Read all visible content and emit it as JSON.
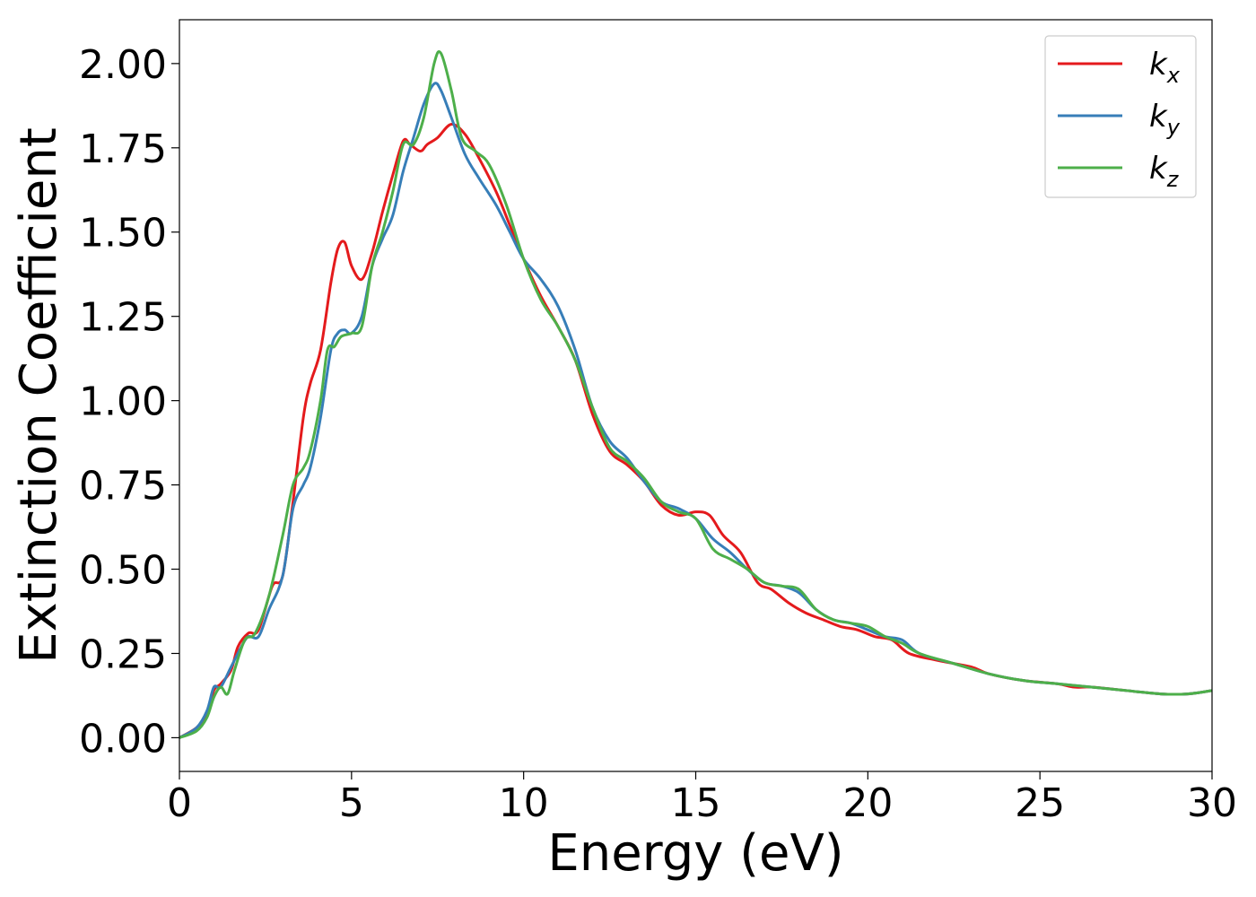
{
  "chart_data": {
    "type": "line",
    "xlabel": "Energy (eV)",
    "ylabel": "Extinction Coefficient",
    "xlim": [
      0,
      30
    ],
    "ylim": [
      -0.1,
      2.13
    ],
    "xticks": [
      0,
      5,
      10,
      15,
      20,
      25,
      30
    ],
    "xtick_labels": [
      "0",
      "5",
      "10",
      "15",
      "20",
      "25",
      "30"
    ],
    "yticks": [
      0,
      0.25,
      0.5,
      0.75,
      1.0,
      1.25,
      1.5,
      1.75,
      2.0
    ],
    "ytick_labels": [
      "0.00",
      "0.25",
      "0.50",
      "0.75",
      "1.00",
      "1.25",
      "1.50",
      "1.75",
      "2.00"
    ],
    "grid": false,
    "legend_position": "top-right",
    "series": [
      {
        "name": "kx",
        "label_base": "k",
        "label_sub": "x",
        "color": "#e41a1c",
        "x": [
          0,
          0.5,
          0.8,
          1.0,
          1.2,
          1.5,
          1.7,
          2.0,
          2.3,
          2.7,
          3.0,
          3.3,
          3.6,
          3.8,
          4.1,
          4.4,
          4.6,
          4.8,
          5.0,
          5.3,
          5.6,
          5.9,
          6.2,
          6.5,
          6.7,
          7.0,
          7.2,
          7.5,
          7.9,
          8.3,
          8.7,
          9.2,
          9.6,
          10.0,
          10.5,
          11.0,
          11.5,
          12.0,
          12.5,
          13.0,
          13.5,
          14.0,
          14.5,
          15.0,
          15.4,
          15.8,
          16.3,
          16.8,
          17.2,
          17.7,
          18.2,
          18.7,
          19.2,
          19.7,
          20.2,
          20.7,
          21.2,
          22.0,
          23.0,
          23.5,
          24.5,
          25.5,
          26.0,
          26.5,
          27.5,
          28.5,
          29.3,
          30.0
        ],
        "y": [
          0,
          0.03,
          0.07,
          0.14,
          0.16,
          0.2,
          0.27,
          0.31,
          0.32,
          0.45,
          0.48,
          0.7,
          0.95,
          1.05,
          1.15,
          1.35,
          1.45,
          1.47,
          1.4,
          1.36,
          1.44,
          1.56,
          1.67,
          1.77,
          1.76,
          1.74,
          1.76,
          1.78,
          1.82,
          1.79,
          1.72,
          1.62,
          1.52,
          1.42,
          1.31,
          1.22,
          1.12,
          0.96,
          0.85,
          0.81,
          0.76,
          0.69,
          0.66,
          0.67,
          0.66,
          0.6,
          0.55,
          0.46,
          0.44,
          0.4,
          0.37,
          0.35,
          0.33,
          0.32,
          0.3,
          0.29,
          0.25,
          0.23,
          0.21,
          0.19,
          0.17,
          0.16,
          0.15,
          0.15,
          0.14,
          0.13,
          0.13,
          0.14
        ]
      },
      {
        "name": "ky",
        "label_base": "k",
        "label_sub": "y",
        "color": "#377eb8",
        "x": [
          0,
          0.5,
          0.8,
          1.0,
          1.2,
          1.5,
          1.8,
          2.0,
          2.3,
          2.6,
          3.0,
          3.3,
          3.6,
          3.8,
          4.1,
          4.4,
          4.6,
          4.8,
          5.0,
          5.3,
          5.6,
          5.9,
          6.2,
          6.5,
          6.8,
          7.1,
          7.4,
          7.6,
          7.9,
          8.3,
          8.7,
          9.2,
          9.6,
          10.0,
          10.5,
          11.0,
          11.5,
          12.0,
          12.5,
          13.0,
          13.5,
          14.0,
          14.5,
          15.0,
          15.5,
          16.0,
          16.5,
          17.0,
          17.5,
          18.0,
          18.5,
          19.0,
          19.5,
          20.0,
          20.5,
          21.0,
          21.5,
          22.5,
          23.5,
          24.5,
          25.5,
          26.5,
          27.5,
          28.5,
          29.3,
          30.0
        ],
        "y": [
          0,
          0.03,
          0.08,
          0.15,
          0.15,
          0.21,
          0.27,
          0.3,
          0.3,
          0.38,
          0.48,
          0.68,
          0.75,
          0.8,
          0.95,
          1.15,
          1.2,
          1.21,
          1.2,
          1.25,
          1.4,
          1.48,
          1.55,
          1.68,
          1.78,
          1.88,
          1.94,
          1.92,
          1.84,
          1.73,
          1.66,
          1.58,
          1.5,
          1.42,
          1.36,
          1.28,
          1.15,
          0.98,
          0.88,
          0.83,
          0.76,
          0.7,
          0.68,
          0.65,
          0.59,
          0.55,
          0.5,
          0.46,
          0.45,
          0.43,
          0.38,
          0.35,
          0.34,
          0.32,
          0.3,
          0.29,
          0.25,
          0.22,
          0.19,
          0.17,
          0.16,
          0.15,
          0.14,
          0.13,
          0.13,
          0.14
        ]
      },
      {
        "name": "kz",
        "label_base": "k",
        "label_sub": "z",
        "color": "#4daf4a",
        "x": [
          0,
          0.5,
          0.8,
          1.0,
          1.2,
          1.4,
          1.6,
          1.9,
          2.2,
          2.6,
          3.0,
          3.3,
          3.6,
          3.8,
          4.1,
          4.3,
          4.5,
          4.7,
          5.0,
          5.3,
          5.6,
          5.9,
          6.2,
          6.5,
          6.8,
          7.1,
          7.4,
          7.6,
          7.9,
          8.2,
          8.6,
          9.0,
          9.5,
          10.0,
          10.5,
          11.0,
          11.5,
          12.0,
          12.5,
          13.0,
          13.5,
          14.0,
          14.5,
          15.0,
          15.5,
          16.0,
          16.5,
          17.0,
          17.5,
          18.0,
          18.5,
          19.0,
          19.5,
          20.0,
          20.5,
          21.0,
          21.5,
          22.5,
          23.5,
          24.5,
          25.5,
          26.5,
          27.5,
          28.5,
          29.3,
          30.0
        ],
        "y": [
          0,
          0.02,
          0.06,
          0.12,
          0.15,
          0.13,
          0.2,
          0.29,
          0.31,
          0.42,
          0.6,
          0.75,
          0.8,
          0.85,
          1.0,
          1.15,
          1.16,
          1.19,
          1.2,
          1.22,
          1.4,
          1.5,
          1.62,
          1.76,
          1.76,
          1.84,
          2.0,
          2.03,
          1.92,
          1.78,
          1.74,
          1.7,
          1.58,
          1.42,
          1.3,
          1.22,
          1.12,
          0.98,
          0.86,
          0.82,
          0.77,
          0.7,
          0.67,
          0.65,
          0.56,
          0.53,
          0.5,
          0.46,
          0.45,
          0.44,
          0.38,
          0.35,
          0.34,
          0.33,
          0.3,
          0.28,
          0.25,
          0.22,
          0.19,
          0.17,
          0.16,
          0.15,
          0.14,
          0.13,
          0.13,
          0.14
        ]
      }
    ]
  }
}
